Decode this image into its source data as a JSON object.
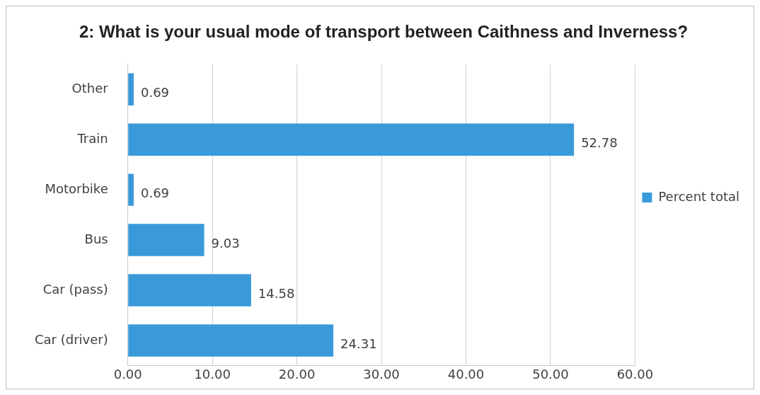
{
  "chart_data": {
    "type": "bar",
    "orientation": "horizontal",
    "title": "2: What is your usual mode of transport between Caithness and Inverness?",
    "categories": [
      "Other",
      "Train",
      "Motorbike",
      "Bus",
      "Car (pass)",
      "Car (driver)"
    ],
    "series": [
      {
        "name": "Percent total",
        "color": "#3a9ad9",
        "values": [
          0.69,
          52.78,
          0.69,
          9.03,
          14.58,
          24.31
        ]
      }
    ],
    "xlim": [
      0,
      60
    ],
    "xticks": [
      {
        "value": 0,
        "label": "0.00"
      },
      {
        "value": 10,
        "label": "10.00"
      },
      {
        "value": 20,
        "label": "20.00"
      },
      {
        "value": 30,
        "label": "30.00"
      },
      {
        "value": 40,
        "label": "40.00"
      },
      {
        "value": 50,
        "label": "50.00"
      },
      {
        "value": 60,
        "label": "60.00"
      }
    ],
    "grid": "x",
    "legend": "right",
    "data_labels": true
  }
}
